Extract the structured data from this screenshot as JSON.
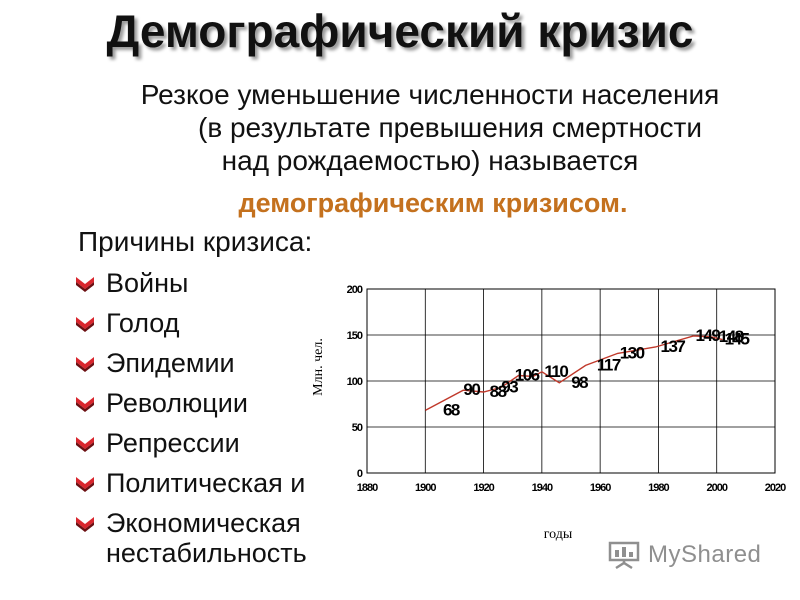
{
  "slide": {
    "title": "Демографический кризис",
    "intro_lines": [
      "Резкое уменьшение численности населения",
      "(в результате превышения смертности",
      "над рождаемостью) называется"
    ],
    "term": "демографическим кризисом.",
    "causes_title": "Причины кризиса:",
    "causes": [
      "Войны",
      "Голод",
      "Эпидемии",
      "Революции",
      "Репрессии",
      "Политическая и",
      "Экономическая",
      "нестабильность"
    ],
    "watermark": "MyShared"
  },
  "chart_data": {
    "type": "line",
    "title": "",
    "xlabel": "годы",
    "ylabel": "Млн. чел.",
    "xlim": [
      1880,
      2020
    ],
    "ylim": [
      0,
      200
    ],
    "x_ticks": [
      1880,
      1900,
      1920,
      1940,
      1960,
      1980,
      2000,
      2020
    ],
    "y_ticks": [
      0,
      50,
      100,
      150,
      200
    ],
    "grid": true,
    "line_color": "#c0392b",
    "series": [
      {
        "x": [
          1900,
          1913,
          1920,
          1926,
          1932,
          1937,
          1940,
          1946,
          1955,
          1966,
          1979,
          1992,
          1998,
          2002
        ],
        "values": [
          68,
          90,
          88,
          93,
          106,
          105,
          110,
          98,
          117,
          130,
          137,
          149,
          148,
          145
        ]
      }
    ],
    "annotations": [
      {
        "text": "68",
        "x": 1904,
        "y": 68
      },
      {
        "text": "90",
        "x": 1911,
        "y": 90
      },
      {
        "text": "88",
        "x": 1920,
        "y": 88
      },
      {
        "text": "93",
        "x": 1924,
        "y": 93
      },
      {
        "text": "106",
        "x": 1930,
        "y": 106
      },
      {
        "text": "110",
        "x": 1940,
        "y": 110
      },
      {
        "text": "98",
        "x": 1948,
        "y": 98
      },
      {
        "text": "117",
        "x": 1958,
        "y": 117
      },
      {
        "text": "130",
        "x": 1966,
        "y": 130
      },
      {
        "text": "137",
        "x": 1980,
        "y": 137
      },
      {
        "text": "149",
        "x": 1992,
        "y": 149
      },
      {
        "text": "148",
        "x": 2000,
        "y": 148
      },
      {
        "text": "145",
        "x": 2002,
        "y": 145
      }
    ]
  }
}
